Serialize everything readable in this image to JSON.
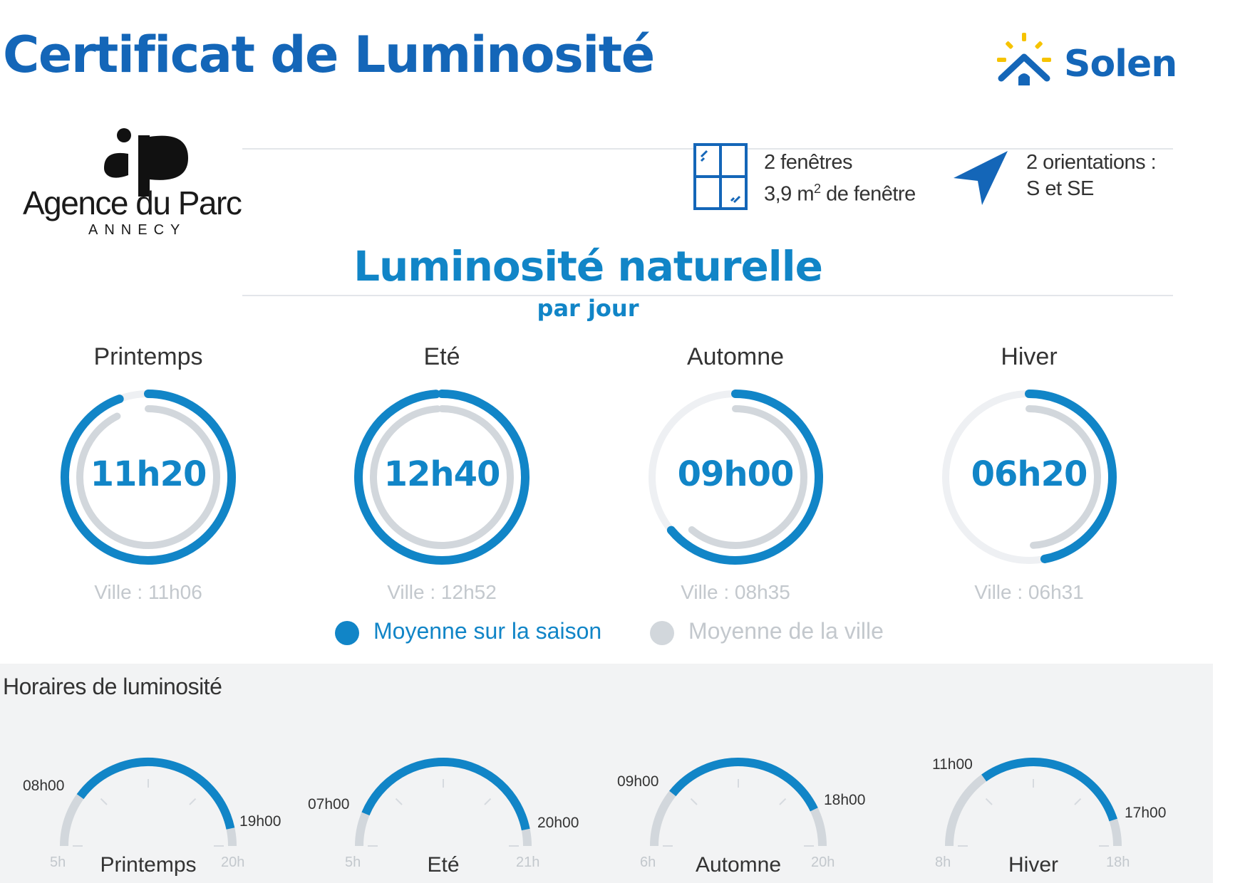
{
  "header": {
    "title": "Certificat de Luminosité",
    "brand": "Solen"
  },
  "agency": {
    "monogram": "ap",
    "name": "Agence du Parc",
    "city": "ANNECY"
  },
  "features": {
    "windows_line1": "2 fenêtres",
    "windows_line2_value": "3,9 m",
    "windows_line2_sup": "2",
    "windows_line2_rest": " de fenêtre",
    "orientations_line1": "2 orientations :",
    "orientations_line2": "S et SE"
  },
  "section": {
    "title": "Luminosité naturelle",
    "subtitle": "par jour"
  },
  "seasons": [
    {
      "name": "Printemps",
      "value": "11h20",
      "city": "Ville : 11h06",
      "season_fraction": 0.944,
      "city_fraction": 0.925
    },
    {
      "name": "Eté",
      "value": "12h40",
      "city": "Ville : 12h52",
      "season_fraction": 0.989,
      "city_fraction": 0.99
    },
    {
      "name": "Automne",
      "value": "09h00",
      "city": "Ville : 08h35",
      "season_fraction": 0.64,
      "city_fraction": 0.61
    },
    {
      "name": "Hiver",
      "value": "06h20",
      "city": "Ville : 06h31",
      "season_fraction": 0.47,
      "city_fraction": 0.49
    }
  ],
  "legend": {
    "season_label": "Moyenne sur la saison",
    "city_label": "Moyenne de la ville"
  },
  "schedule": {
    "title": "Horaires de luminosité",
    "gauges": [
      {
        "name": "Printemps",
        "min": "5h",
        "max": "20h",
        "start": "08h00",
        "end": "19h00",
        "range_min": 5,
        "range_max": 20,
        "start_h": 8,
        "end_h": 19
      },
      {
        "name": "Eté",
        "min": "5h",
        "max": "21h",
        "start": "07h00",
        "end": "20h00",
        "range_min": 5,
        "range_max": 21,
        "start_h": 7,
        "end_h": 20
      },
      {
        "name": "Automne",
        "min": "6h",
        "max": "20h",
        "start": "09h00",
        "end": "18h00",
        "range_min": 6,
        "range_max": 20,
        "start_h": 9,
        "end_h": 18
      },
      {
        "name": "Hiver",
        "min": "8h",
        "max": "18h",
        "start": "11h00",
        "end": "17h00",
        "range_min": 8,
        "range_max": 18,
        "start_h": 11,
        "end_h": 17
      }
    ]
  },
  "colors": {
    "title_blue": "#1466b8",
    "accent_blue": "#1185c7",
    "city_grey": "#d2d7dc",
    "track_light": "#eef0f3",
    "sun_yellow": "#f6c300",
    "panel_bg": "#f2f3f4"
  },
  "icons": {
    "brand_logo": "sun-house-icon",
    "windows": "window-icon",
    "orientation": "navigation-arrow-icon"
  }
}
